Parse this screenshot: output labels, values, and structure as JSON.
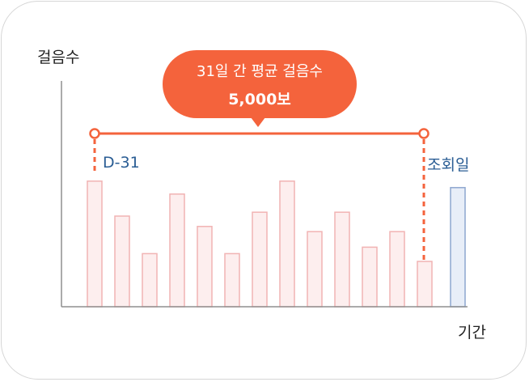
{
  "chart_data": {
    "type": "bar",
    "ylabel": "걸음수",
    "xlabel": "기간",
    "callout": {
      "title": "31일 간 평균 걸음수",
      "value": "5,000보"
    },
    "range_start_label": "D-31",
    "query_day_label": "조회일",
    "series": [
      {
        "values": [
          97,
          70,
          41,
          87,
          62,
          41,
          73,
          97,
          58,
          73,
          46,
          58,
          35
        ],
        "color": "#fdeeee",
        "stroke": "#f1b3b3"
      },
      {
        "values": [
          92
        ],
        "color": "#e8eef8",
        "stroke": "#8ea7cf"
      }
    ],
    "highlight_color": "#f4633c",
    "grid": false
  }
}
